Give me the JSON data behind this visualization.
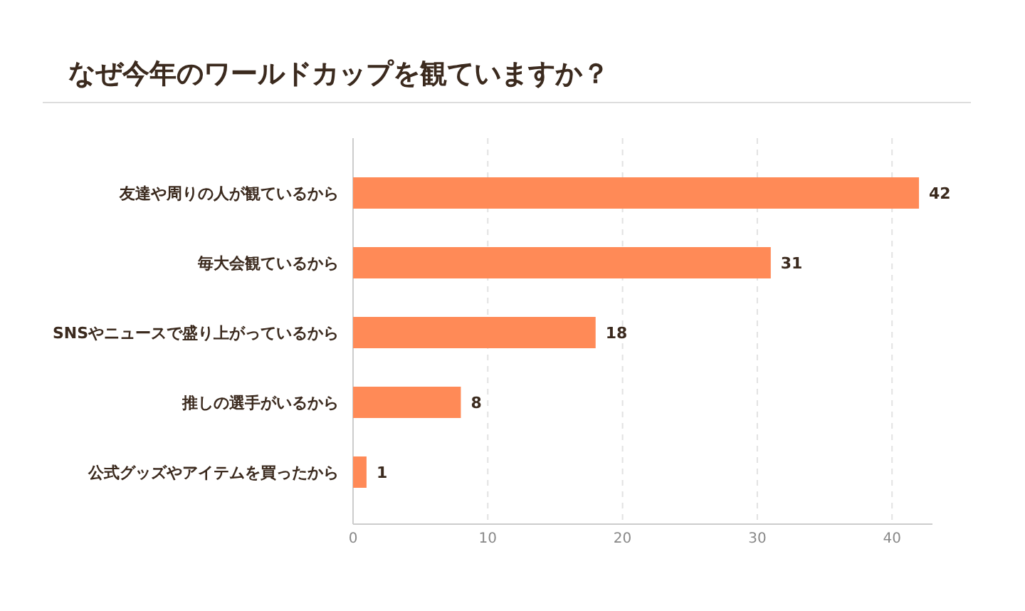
{
  "chart_data": {
    "type": "bar",
    "orientation": "horizontal",
    "title": "なぜ今年のワールドカップを観ていますか？",
    "categories": [
      "友達や周りの人が観ているから",
      "毎大会観ているから",
      "SNSやニュースで盛り上がっているから",
      "推しの選手がいるから",
      "公式グッズやアイテムを買ったから"
    ],
    "values": [
      42,
      31,
      18,
      8,
      1
    ],
    "color": "#ff8a57",
    "xlim": [
      0,
      43
    ],
    "xticks": [
      0,
      10,
      20,
      30,
      40
    ],
    "grid": "x",
    "data_labels": true
  }
}
